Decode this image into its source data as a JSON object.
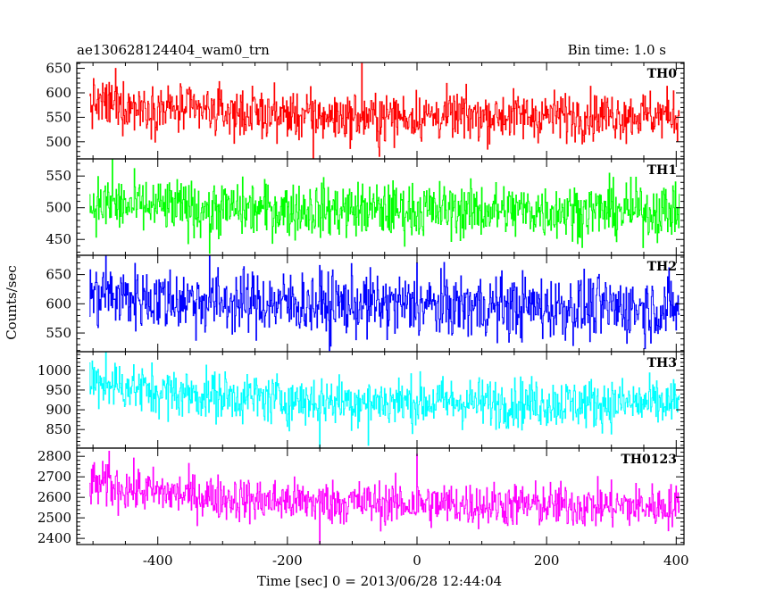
{
  "chart_data": {
    "type": "line",
    "title_left": "ae130628124404_wam0_trn",
    "title_right": "Bin time: 1.0 s",
    "xlabel": "Time [sec] 0 = 2013/06/28 12:44:04",
    "ylabel": "Counts/sec",
    "xlim": [
      -525,
      412
    ],
    "data_range": [
      -505,
      405
    ],
    "bin_time": 1.0,
    "xticks": [
      -400,
      -200,
      0,
      200,
      400
    ],
    "grid": false,
    "panels": [
      {
        "label": "TH0",
        "color": "#ff0000",
        "ylim": [
          465,
          662
        ],
        "yticks": [
          500,
          550,
          600,
          650
        ],
        "trend": [
          [
            -505,
            578
          ],
          [
            -300,
            560
          ],
          [
            -100,
            550
          ],
          [
            0,
            552
          ],
          [
            405,
            555
          ]
        ],
        "noise": 25,
        "spikes": [
          [
            -85,
            660
          ],
          [
            -465,
            650
          ],
          [
            -160,
            465
          ],
          [
            -58,
            470
          ]
        ]
      },
      {
        "label": "TH1",
        "color": "#00ff00",
        "ylim": [
          425,
          577
        ],
        "yticks": [
          450,
          500,
          550
        ],
        "trend": [
          [
            -505,
            505
          ],
          [
            -300,
            498
          ],
          [
            0,
            496
          ],
          [
            405,
            495
          ]
        ],
        "noise": 22,
        "spikes": [
          [
            -470,
            578
          ],
          [
            -320,
            428
          ]
        ]
      },
      {
        "label": "TH2",
        "color": "#0000ff",
        "ylim": [
          518,
          683
        ],
        "yticks": [
          550,
          600,
          650
        ],
        "trend": [
          [
            -505,
            615
          ],
          [
            -300,
            603
          ],
          [
            0,
            597
          ],
          [
            405,
            592
          ]
        ],
        "noise": 28,
        "spikes": [
          [
            -320,
            685
          ],
          [
            -480,
            685
          ],
          [
            0,
            670
          ],
          [
            -135,
            520
          ]
        ]
      },
      {
        "label": "TH3",
        "color": "#00ffff",
        "ylim": [
          803,
          1047
        ],
        "yticks": [
          850,
          900,
          950,
          1000
        ],
        "trend": [
          [
            -505,
            975
          ],
          [
            -400,
            945
          ],
          [
            -200,
            925
          ],
          [
            0,
            920
          ],
          [
            405,
            915
          ]
        ],
        "noise": 32,
        "spikes": [
          [
            -480,
            1045
          ],
          [
            -150,
            805
          ],
          [
            -75,
            810
          ]
        ]
      },
      {
        "label": "TH0123",
        "color": "#ff00ff",
        "ylim": [
          2370,
          2840
        ],
        "yticks": [
          2400,
          2500,
          2600,
          2700,
          2800
        ],
        "trend": [
          [
            -505,
            2665
          ],
          [
            -400,
            2625
          ],
          [
            -250,
            2585
          ],
          [
            0,
            2568
          ],
          [
            405,
            2555
          ]
        ],
        "noise": 55,
        "spikes": [
          [
            0,
            2810
          ],
          [
            -475,
            2825
          ],
          [
            -150,
            2375
          ]
        ]
      }
    ]
  }
}
